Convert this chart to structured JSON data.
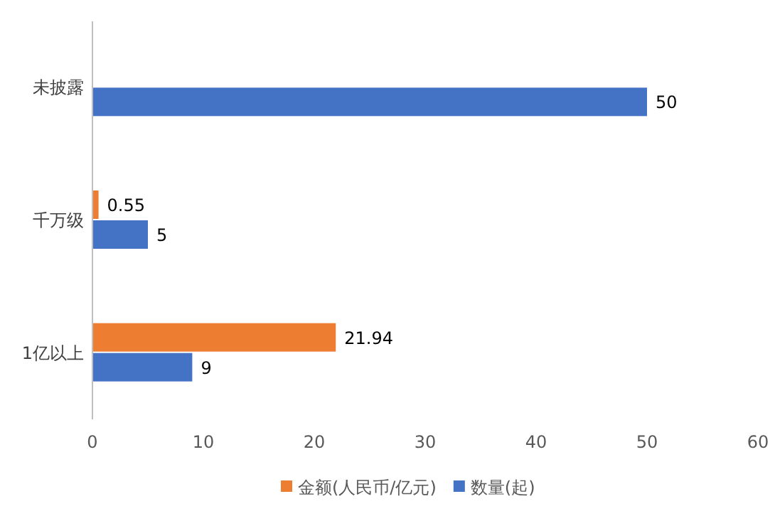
{
  "chart_data": {
    "type": "bar",
    "orientation": "horizontal",
    "categories": [
      "未披露",
      "千万级",
      "1亿以上"
    ],
    "series": [
      {
        "name": "金额(人民币/亿元)",
        "color": "#ed7d31",
        "values": [
          null,
          0.55,
          21.94
        ]
      },
      {
        "name": "数量(起)",
        "color": "#4472c4",
        "values": [
          50,
          5,
          9
        ]
      }
    ],
    "xlim": [
      0,
      60
    ],
    "xticks": [
      0,
      10,
      20,
      30,
      40,
      50,
      60
    ],
    "data_labels": true,
    "legend": "bottom",
    "grid": false
  }
}
